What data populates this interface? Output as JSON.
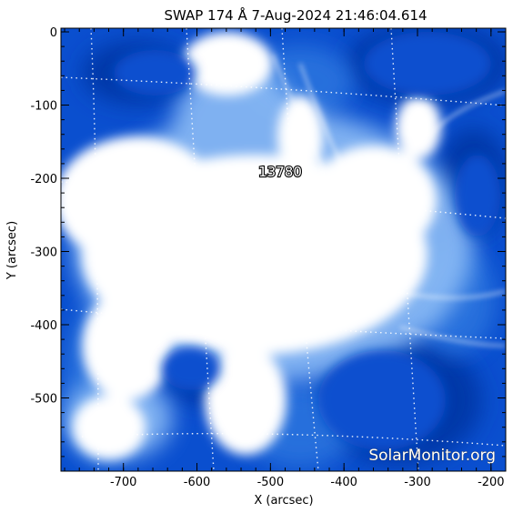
{
  "plot": {
    "title": "SWAP 174 Å  7-Aug-2024 21:46:04.614",
    "xlabel": "X (arcsec)",
    "ylabel": "Y (arcsec)",
    "x_ticks": [
      "-700",
      "-600",
      "-500",
      "-400",
      "-300",
      "-200"
    ],
    "y_ticks": [
      "0",
      "-100",
      "-200",
      "-300",
      "-400",
      "-500"
    ],
    "xlim": [
      -785,
      -180
    ],
    "ylim": [
      -600,
      5
    ],
    "active_region": "13780",
    "watermark": "SolarMonitor.org",
    "colors": {
      "background_blue": "#0a4fcf",
      "deep_blue": "#0338a8",
      "mid_blue": "#2f78e0",
      "light_blue": "#8cbcf5",
      "bright": "#ffffff"
    }
  }
}
